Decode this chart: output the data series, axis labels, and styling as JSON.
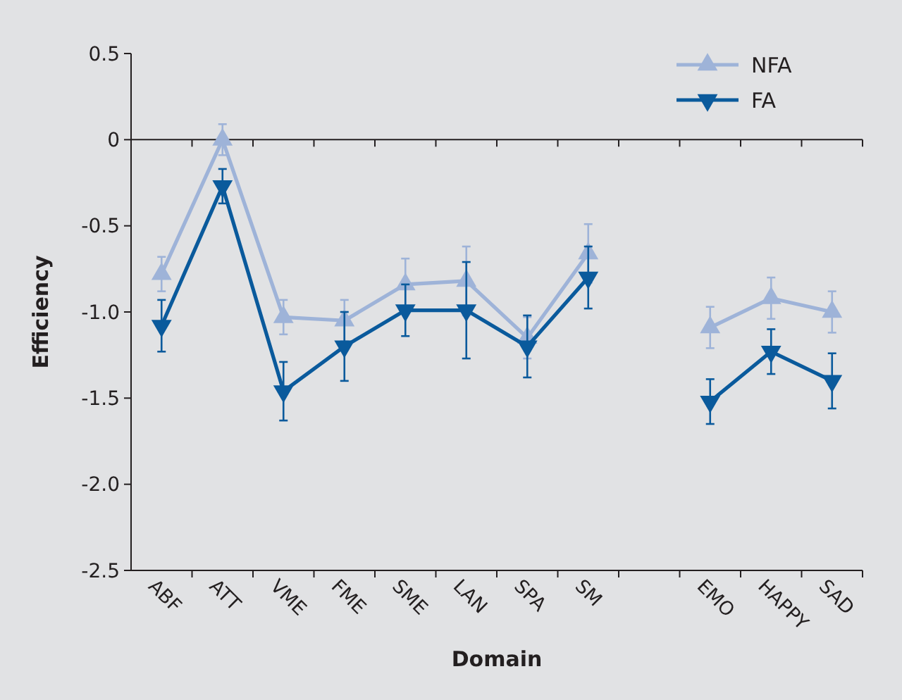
{
  "chart_data": {
    "type": "line",
    "xlabel": "Domain",
    "ylabel": "Efficiency",
    "categories": [
      "ABF",
      "ATT",
      "VME",
      "FME",
      "SME",
      "LAN",
      "SPA",
      "SM",
      null,
      "EMO",
      "HAPPY",
      "SAD"
    ],
    "series": [
      {
        "name": "NFA",
        "color": "#9eb3d8",
        "marker": "triangle",
        "values": [
          -0.78,
          0,
          -1.03,
          -1.05,
          -0.84,
          -0.82,
          -1.15,
          -0.66,
          null,
          -1.09,
          -0.92,
          -1.0
        ],
        "errors": [
          0.1,
          0.09,
          0.1,
          0.12,
          0.15,
          0.2,
          0.12,
          0.17,
          null,
          0.12,
          0.12,
          0.12
        ]
      },
      {
        "name": "FA",
        "color": "#0a5a9c",
        "marker": "triangle-down",
        "values": [
          -1.08,
          -0.27,
          -1.46,
          -1.2,
          -0.99,
          -0.99,
          -1.2,
          -0.8,
          null,
          -1.52,
          -1.23,
          -1.4
        ],
        "errors": [
          0.15,
          0.1,
          0.17,
          0.2,
          0.15,
          0.28,
          0.18,
          0.18,
          null,
          0.13,
          0.13,
          0.16
        ]
      }
    ],
    "ylim": [
      -2.5,
      0.5
    ],
    "yticks": [
      0.5,
      0,
      -0.5,
      {
        "value": -1,
        "label": "-1.0"
      },
      -1.5,
      {
        "value": -2,
        "label": "-2.0"
      },
      -2.5
    ],
    "ref_lines": [
      {
        "axis": "y",
        "value": 0
      }
    ],
    "legend": "top right",
    "grid": false
  }
}
